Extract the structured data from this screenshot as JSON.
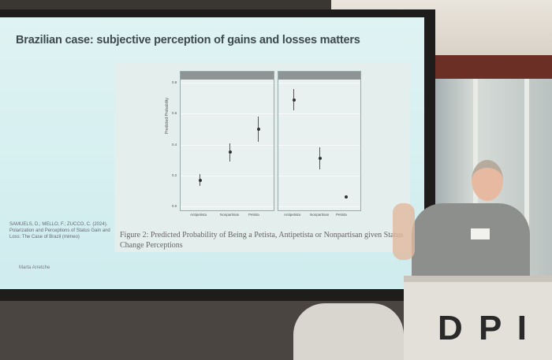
{
  "slide": {
    "title": "Brazilian case: subjective perception of gains and losses matters",
    "citation": "SAMUELS, D.; MELLO, F.; ZUCCO, C. (2024). Polarization and Perceptions of Status Gain and Loss: The Case of Brazil (mimeo)",
    "author": "Marta Arretche",
    "figure": {
      "ylabel": "Predicted Probability",
      "yticks": [
        "0.8",
        "0.6",
        "0.4",
        "0.2",
        "0.0"
      ],
      "xlabels": [
        "Antipetista",
        "Nonpartisan",
        "Petista"
      ],
      "caption_line1": "Figure 2: Predicted Probability of Being a Petista, Antipetista or Nonpartisan given Status",
      "caption_line2": "Change Perceptions"
    }
  },
  "podium": {
    "logo": "DPI"
  }
}
